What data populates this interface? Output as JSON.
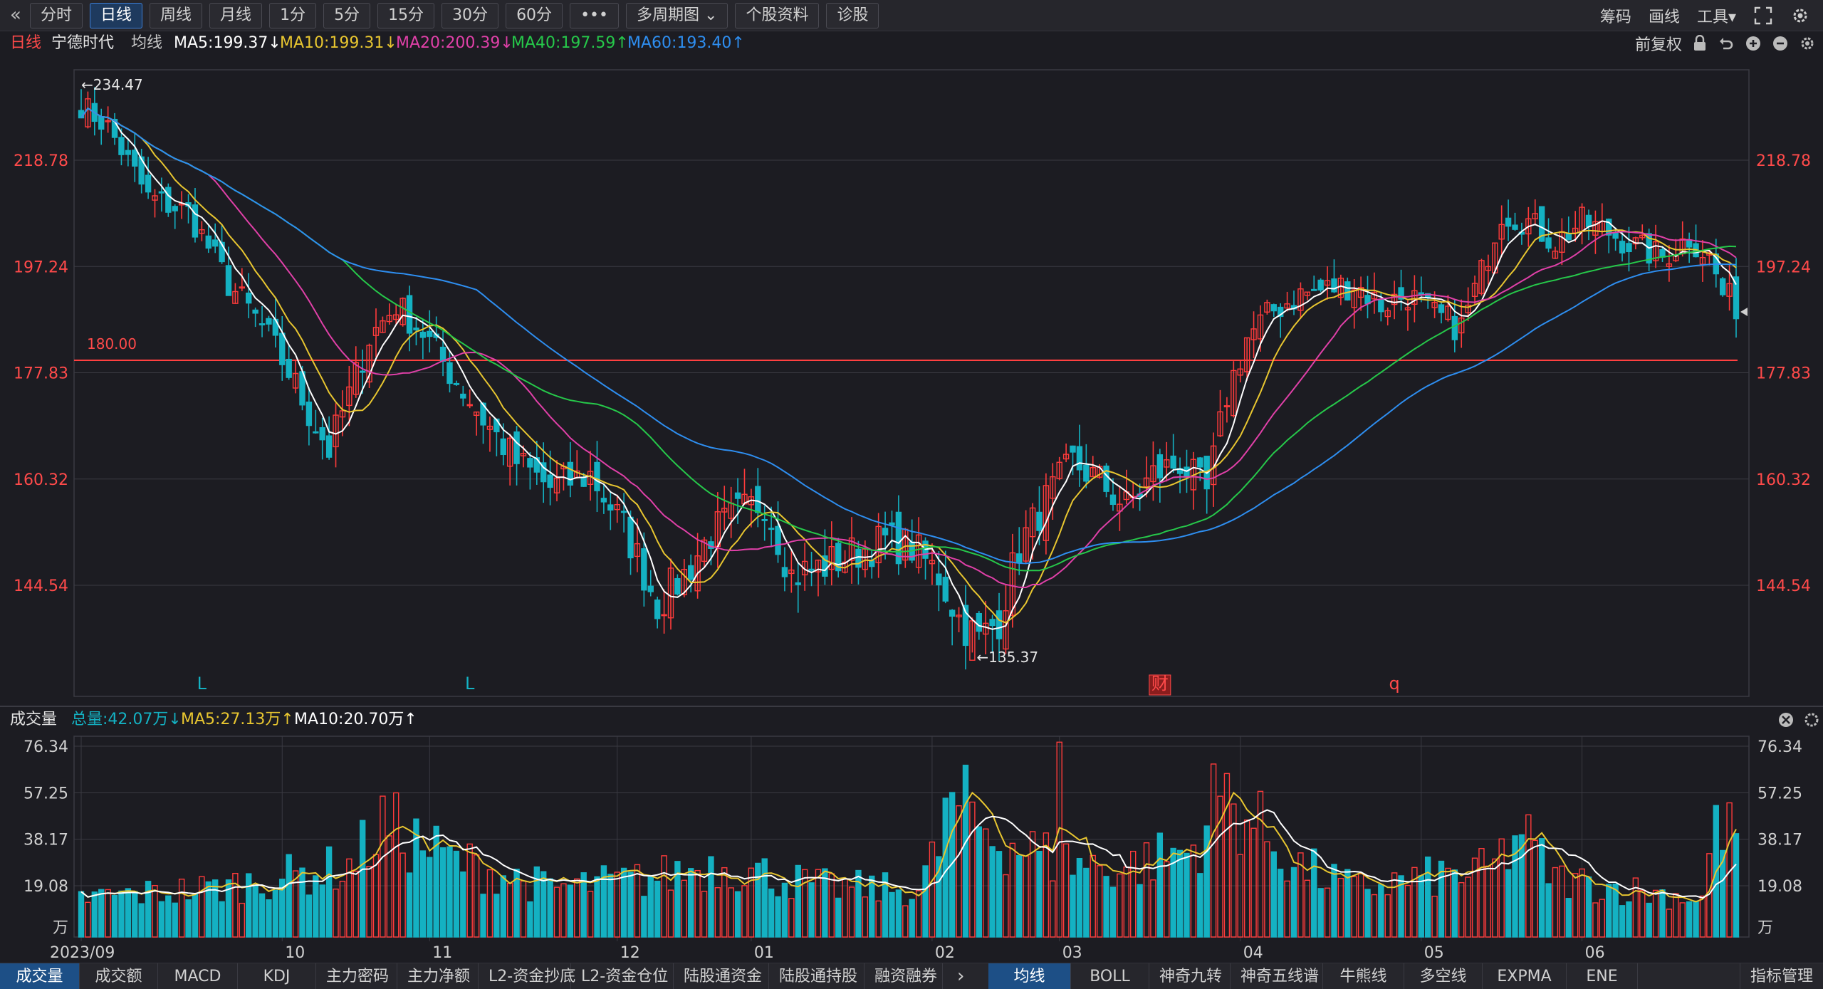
{
  "toolbar": {
    "back_icon": "double-chevron-left-icon",
    "buttons": [
      "分时",
      "日线",
      "周线",
      "月线",
      "1分",
      "5分",
      "15分",
      "30分",
      "60分",
      "•••",
      "多周期图 ⌄",
      "个股资料",
      "诊股"
    ],
    "active_index": 1,
    "right": [
      "筹码",
      "画线",
      "工具▾"
    ],
    "right_icons": [
      "expand-icon",
      "gear-icon"
    ]
  },
  "legend": {
    "period": "日线",
    "stock": "宁德时代",
    "type": "均线",
    "ma5": "MA5:199.37↓",
    "ma10": "MA10:199.31↓",
    "ma20": "MA20:200.39↓",
    "ma40": "MA40:197.59↑",
    "ma60": "MA60:193.40↑",
    "fq": "前复权"
  },
  "volume_legend": {
    "title": "成交量",
    "total": "总量:42.07万↓",
    "ma5": "MA5:27.13万↑",
    "ma10": "MA10:20.70万↑"
  },
  "colors": {
    "up": "#ff3b3b",
    "down": "#14b1c2",
    "ma5": "#ffffff",
    "ma10": "#e8c630",
    "ma20": "#e040a8",
    "ma40": "#26c84a",
    "ma60": "#2e8ef0",
    "grid": "#3a3a42",
    "axis_text_price": "#ff4a4a",
    "axis_text_vol": "#d0d0d0"
  },
  "chart_data": {
    "type": "candlestick",
    "price_ticks": [
      "218.78",
      "197.24",
      "177.83",
      "160.32",
      "144.54"
    ],
    "price_tick_values": [
      218.78,
      197.24,
      177.83,
      160.32,
      144.54
    ],
    "high_label": "←234.47",
    "high_value": 234.47,
    "low_label": "←135.37",
    "low_value": 135.37,
    "hline_label": "180.00",
    "hline_value": 180.0,
    "markers": [
      "L",
      "L",
      "财",
      "q"
    ],
    "x_labels": [
      "2023/09",
      "10",
      "11",
      "12",
      "01",
      "02",
      "03",
      "04",
      "05",
      "06"
    ],
    "volume_ticks": [
      "76.34",
      "57.25",
      "38.17",
      "19.08",
      "万"
    ],
    "volume_tick_values": [
      76.34,
      57.25,
      38.17,
      19.08,
      0
    ],
    "price_anchors": [
      [
        0,
        231
      ],
      [
        4,
        226
      ],
      [
        10,
        211
      ],
      [
        16,
        208
      ],
      [
        22,
        194
      ],
      [
        27,
        186
      ],
      [
        31,
        178
      ],
      [
        34,
        171
      ],
      [
        37,
        165
      ],
      [
        40,
        174
      ],
      [
        43,
        184
      ],
      [
        47,
        190
      ],
      [
        51,
        185
      ],
      [
        55,
        178
      ],
      [
        60,
        170
      ],
      [
        65,
        163
      ],
      [
        70,
        159
      ],
      [
        76,
        161
      ],
      [
        81,
        153
      ],
      [
        86,
        142
      ],
      [
        90,
        146
      ],
      [
        94,
        152
      ],
      [
        98,
        155
      ],
      [
        102,
        157
      ],
      [
        106,
        146
      ],
      [
        110,
        147
      ],
      [
        115,
        149
      ],
      [
        120,
        151
      ],
      [
        124,
        150
      ],
      [
        128,
        146
      ],
      [
        131,
        140
      ],
      [
        134,
        137
      ],
      [
        137,
        140
      ],
      [
        140,
        150
      ],
      [
        144,
        157
      ],
      [
        148,
        163
      ],
      [
        152,
        160
      ],
      [
        156,
        156
      ],
      [
        160,
        161
      ],
      [
        164,
        163
      ],
      [
        168,
        158
      ],
      [
        171,
        174
      ],
      [
        174,
        184
      ],
      [
        178,
        189
      ],
      [
        182,
        192
      ],
      [
        186,
        193
      ],
      [
        190,
        194
      ],
      [
        194,
        190
      ],
      [
        198,
        192
      ],
      [
        202,
        188
      ],
      [
        206,
        186
      ],
      [
        209,
        196
      ],
      [
        212,
        208
      ],
      [
        216,
        206
      ],
      [
        220,
        202
      ],
      [
        224,
        206
      ],
      [
        228,
        204
      ],
      [
        232,
        201
      ],
      [
        236,
        199
      ],
      [
        240,
        203
      ],
      [
        243,
        199
      ],
      [
        245,
        192
      ],
      [
        247,
        190
      ]
    ],
    "volume_anchors": [
      [
        0,
        14
      ],
      [
        20,
        18
      ],
      [
        40,
        27
      ],
      [
        45,
        44
      ],
      [
        55,
        30
      ],
      [
        70,
        18
      ],
      [
        85,
        22
      ],
      [
        95,
        28
      ],
      [
        110,
        19
      ],
      [
        125,
        17
      ],
      [
        131,
        52
      ],
      [
        136,
        40
      ],
      [
        145,
        30
      ],
      [
        155,
        26
      ],
      [
        160,
        30
      ],
      [
        166,
        34
      ],
      [
        170,
        58
      ],
      [
        176,
        42
      ],
      [
        181,
        28
      ],
      [
        190,
        18
      ],
      [
        200,
        22
      ],
      [
        210,
        25
      ],
      [
        215,
        40
      ],
      [
        220,
        22
      ],
      [
        235,
        16
      ],
      [
        242,
        14
      ],
      [
        244,
        50
      ],
      [
        246,
        40
      ],
      [
        247,
        42
      ]
    ]
  },
  "bottom_tabs_left": [
    "成交量",
    "成交额",
    "MACD",
    "KDJ",
    "主力密码",
    "主力净额",
    "L2-资金抄底",
    "L2-资金仓位",
    "陆股通资金",
    "陆股通持股",
    "融资融券"
  ],
  "bottom_tabs_right": [
    "均线",
    "BOLL",
    "神奇九转",
    "神奇五线谱",
    "牛熊线",
    "多空线",
    "EXPMA",
    "ENE"
  ],
  "bottom_tabs_right_active": 0,
  "bottom_more": "›",
  "bottom_manage": "指标管理"
}
